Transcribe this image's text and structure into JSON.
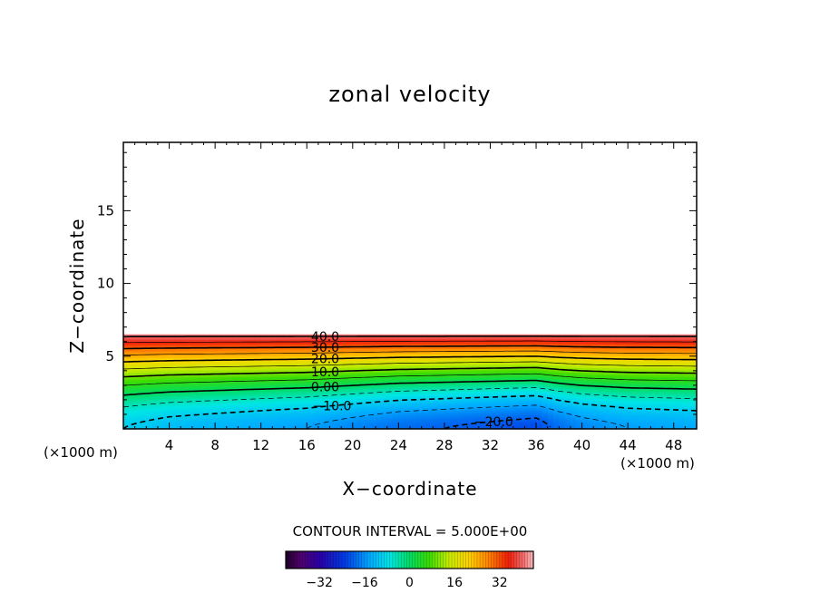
{
  "chart_data": {
    "type": "heatmap",
    "title": "zonal velocity",
    "xlabel": "X−coordinate",
    "ylabel": "Z−coordinate",
    "x_unit_left": "(×1000 m)",
    "x_unit_right": "(×1000 m)",
    "x_ticks": [
      "4",
      "8",
      "12",
      "16",
      "20",
      "24",
      "28",
      "32",
      "36",
      "40",
      "44",
      "48"
    ],
    "y_ticks": [
      "5",
      "10",
      "15"
    ],
    "xlim": [
      0,
      50
    ],
    "ylim": [
      0,
      19.7
    ],
    "contour_interval_text": "CONTOUR INTERVAL = 5.000E+00",
    "contour_labels": [
      "40.0",
      "30.0",
      "20.0",
      "10.0",
      "0.00",
      "−10.0",
      "−20.0"
    ],
    "contour_levels": [
      -25,
      -20,
      -15,
      -10,
      -5,
      0,
      5,
      10,
      15,
      20,
      25,
      30,
      35,
      40
    ],
    "field_top_z": 6.5,
    "colorbar": {
      "ticks": [
        "−32",
        "−16",
        "0",
        "16",
        "32"
      ],
      "tick_values": [
        -32,
        -16,
        0,
        16,
        32
      ],
      "range": [
        -44,
        44
      ]
    },
    "profile_x": [
      0,
      4,
      8,
      12,
      16,
      20,
      24,
      28,
      32,
      36,
      38,
      40,
      44,
      50
    ],
    "profile_u_surface": [
      -10,
      -12,
      -13,
      -14,
      -15,
      -17,
      -19,
      -20,
      -21,
      -22,
      -19,
      -17,
      -15,
      -14
    ]
  }
}
